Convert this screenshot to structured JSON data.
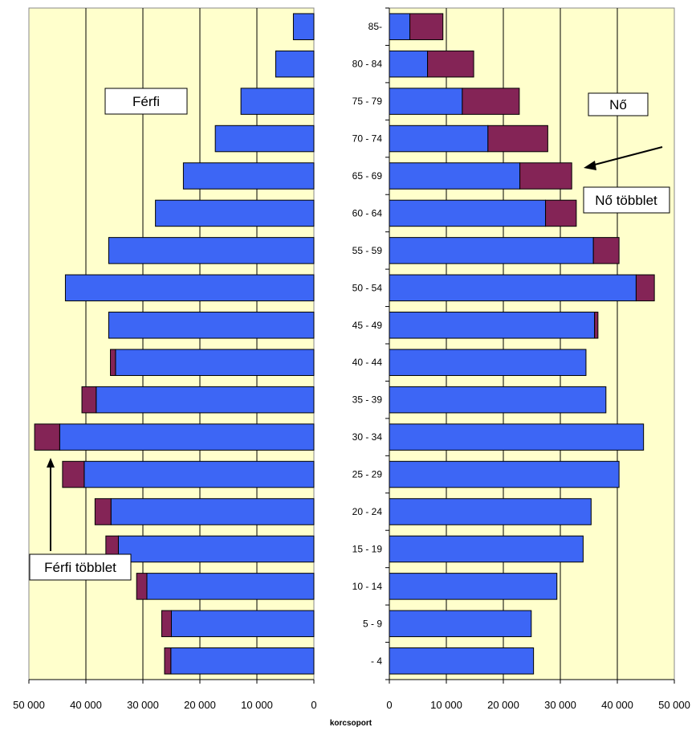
{
  "chart_data": {
    "type": "bar",
    "subtype": "population-pyramid-stacked",
    "categories": [
      "- 4",
      "5 - 9",
      "10 - 14",
      "15 - 19",
      "20 - 24",
      "25 - 29",
      "30 - 34",
      "35 - 39",
      "40 - 44",
      "45 - 49",
      "50 - 54",
      "55 - 59",
      "60 - 64",
      "65 - 69",
      "70 - 74",
      "75 - 79",
      "80 - 84",
      "85-"
    ],
    "xlabel": "korcsoport",
    "xlim": [
      0,
      50000
    ],
    "xticks": [
      "0",
      "10 000",
      "20 000",
      "30 000",
      "40 000",
      "50 000"
    ],
    "left_xticks": [
      "50 000",
      "40 000",
      "30 000",
      "20 000",
      "10 000",
      "0"
    ],
    "grid": true,
    "colors": {
      "base": "#3d66f5",
      "surplus": "#842456",
      "plot_bg": "#ffffcc",
      "grid": "#000000"
    },
    "left_panel": {
      "label": "Férfi",
      "series": [
        {
          "values": [
            25100,
            25000,
            29300,
            34300,
            35600,
            40300,
            44600,
            38200,
            34800,
            36000,
            43600,
            36000,
            27800,
            22900,
            17300,
            12800,
            6700,
            3600
          ]
        },
        {
          "values": [
            1100,
            1700,
            1800,
            2200,
            2800,
            3800,
            4400,
            2500,
            900,
            0,
            0,
            0,
            0,
            0,
            0,
            0,
            0,
            0
          ]
        }
      ],
      "annotation": "Férfi többlet"
    },
    "right_panel": {
      "label": "Nő",
      "series": [
        {
          "values": [
            25300,
            24900,
            29400,
            34000,
            35400,
            40300,
            44600,
            38000,
            34500,
            36000,
            43300,
            35800,
            27400,
            22900,
            17300,
            12800,
            6700,
            3600
          ]
        },
        {
          "values": [
            0,
            0,
            0,
            0,
            0,
            0,
            0,
            0,
            0,
            600,
            3200,
            4500,
            5400,
            9100,
            10500,
            10000,
            8100,
            5800
          ]
        }
      ],
      "annotation": "Nő többlet"
    }
  }
}
